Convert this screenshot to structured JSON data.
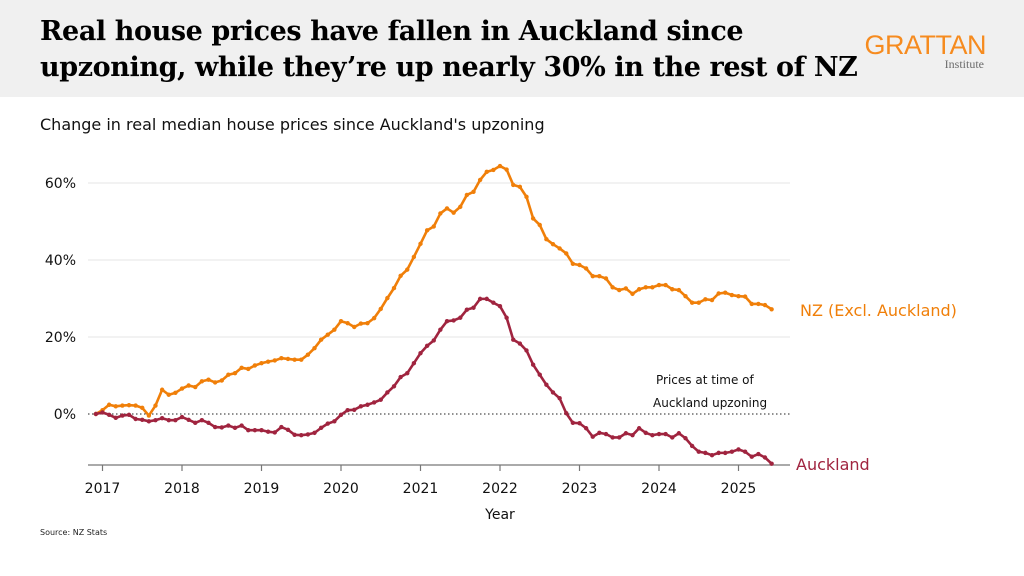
{
  "header": {
    "title": "Real house prices have fallen in Auckland since upzoning, while they’re up nearly 30% in the rest of NZ",
    "logo_main": "GRATTAN",
    "logo_sub": "Institute"
  },
  "source": "Source: NZ Stats",
  "chart_data": {
    "type": "line",
    "title": "Change in real median house prices since Auckland's upzoning",
    "xlabel": "Year",
    "ylabel": "",
    "x_ticks": [
      "2017",
      "2018",
      "2019",
      "2020",
      "2021",
      "2022",
      "2023",
      "2024",
      "2025"
    ],
    "y_ticks": [
      0,
      20,
      40,
      60
    ],
    "y_tick_labels": [
      "0%",
      "20%",
      "40%",
      "60%"
    ],
    "ylim": [
      -13.3,
      65
    ],
    "grid": "horizontal",
    "reference_line": {
      "value": 0,
      "label_line1": "Prices at time of",
      "label_line2": "Auckland upzoning"
    },
    "x": [
      "2016-12",
      "2017-01",
      "2017-02",
      "2017-03",
      "2017-04",
      "2017-05",
      "2017-06",
      "2017-07",
      "2017-08",
      "2017-09",
      "2017-10",
      "2017-11",
      "2017-12",
      "2018-01",
      "2018-02",
      "2018-03",
      "2018-04",
      "2018-05",
      "2018-06",
      "2018-07",
      "2018-08",
      "2018-09",
      "2018-10",
      "2018-11",
      "2018-12",
      "2019-01",
      "2019-02",
      "2019-03",
      "2019-04",
      "2019-05",
      "2019-06",
      "2019-07",
      "2019-08",
      "2019-09",
      "2019-10",
      "2019-11",
      "2019-12",
      "2020-01",
      "2020-02",
      "2020-03",
      "2020-04",
      "2020-05",
      "2020-06",
      "2020-07",
      "2020-08",
      "2020-09",
      "2020-10",
      "2020-11",
      "2020-12",
      "2021-01",
      "2021-02",
      "2021-03",
      "2021-04",
      "2021-05",
      "2021-06",
      "2021-07",
      "2021-08",
      "2021-09",
      "2021-10",
      "2021-11",
      "2021-12",
      "2022-01",
      "2022-02",
      "2022-03",
      "2022-04",
      "2022-05",
      "2022-06",
      "2022-07",
      "2022-08",
      "2022-09",
      "2022-10",
      "2022-11",
      "2022-12",
      "2023-01",
      "2023-02",
      "2023-03",
      "2023-04",
      "2023-05",
      "2023-06",
      "2023-07",
      "2023-08",
      "2023-09",
      "2023-10",
      "2023-11",
      "2023-12",
      "2024-01",
      "2024-02",
      "2024-03",
      "2024-04",
      "2024-05",
      "2024-06",
      "2024-07",
      "2024-08",
      "2024-09",
      "2024-10",
      "2024-11",
      "2024-12",
      "2025-01",
      "2025-02",
      "2025-03",
      "2025-04",
      "2025-05",
      "2025-06"
    ],
    "series": [
      {
        "name": "NZ (Excl. Auckland)",
        "color": "#f07f09",
        "values": [
          0,
          1,
          2.4,
          2,
          2.2,
          2.3,
          2.2,
          1.6,
          -0.4,
          2.2,
          6.3,
          5,
          5.5,
          6.6,
          7.4,
          7,
          8.5,
          8.9,
          8.2,
          8.7,
          10.2,
          10.6,
          12,
          11.7,
          12.6,
          13.2,
          13.6,
          13.9,
          14.5,
          14.3,
          14.1,
          14.1,
          15.4,
          17.1,
          19.3,
          20.6,
          21.9,
          24.1,
          23.6,
          22.6,
          23.5,
          23.6,
          24.9,
          27.3,
          30.1,
          32.7,
          35.9,
          37.5,
          40.8,
          44.2,
          47.7,
          48.7,
          52.1,
          53.4,
          52.3,
          53.8,
          56.9,
          57.7,
          60.8,
          62.9,
          63.4,
          64.4,
          63.5,
          59.5,
          59,
          56.4,
          50.8,
          49.1,
          45.4,
          44.1,
          43,
          41.7,
          39,
          38.7,
          37.8,
          35.8,
          35.8,
          35.2,
          32.9,
          32.2,
          32.6,
          31.2,
          32.4,
          32.9,
          32.9,
          33.5,
          33.5,
          32.4,
          32.2,
          30.6,
          28.9,
          28.9,
          29.8,
          29.6,
          31.3,
          31.5,
          30.9,
          30.6,
          30.5,
          28.6,
          28.6,
          28.3,
          27.2
        ]
      },
      {
        "name": "Auckland",
        "color": "#a0243f",
        "values": [
          0,
          0.4,
          -0.2,
          -1,
          -0.4,
          -0.2,
          -1.3,
          -1.5,
          -1.9,
          -1.6,
          -1.1,
          -1.6,
          -1.6,
          -0.8,
          -1.5,
          -2.3,
          -1.6,
          -2.3,
          -3.4,
          -3.5,
          -3,
          -3.6,
          -3,
          -4.2,
          -4.2,
          -4.2,
          -4.6,
          -4.8,
          -3.4,
          -4.1,
          -5.4,
          -5.5,
          -5.3,
          -4.9,
          -3.6,
          -2.5,
          -1.9,
          -0.2,
          1,
          1.1,
          2,
          2.4,
          3,
          3.7,
          5.6,
          7.2,
          9.6,
          10.6,
          13.2,
          15.8,
          17.7,
          19.1,
          21.9,
          24.1,
          24.3,
          25,
          27.1,
          27.6,
          29.9,
          29.9,
          28.9,
          28,
          25,
          19.3,
          18.3,
          16.5,
          12.8,
          10.2,
          7.6,
          5.6,
          4.1,
          0.2,
          -2.3,
          -2.4,
          -3.7,
          -5.9,
          -4.9,
          -5.2,
          -6.1,
          -6.1,
          -5,
          -5.5,
          -3.7,
          -4.9,
          -5.5,
          -5.2,
          -5.2,
          -6.1,
          -5,
          -6.3,
          -8.3,
          -9.8,
          -10.1,
          -10.7,
          -10.1,
          -10.1,
          -9.8,
          -9.2,
          -9.8,
          -11.1,
          -10.4,
          -11.3,
          -12.9
        ]
      }
    ]
  }
}
